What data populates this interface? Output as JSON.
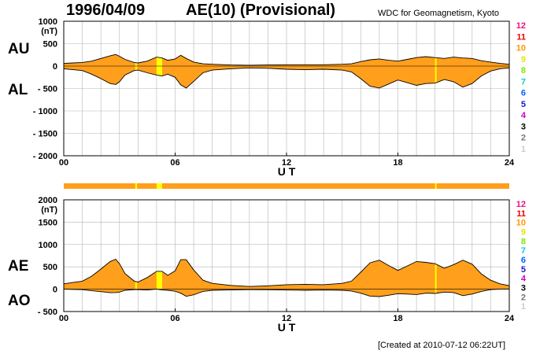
{
  "header": {
    "date": "1996/04/09",
    "title": "AE(10) (Provisional)",
    "source": "WDC for Geomagnetism, Kyoto"
  },
  "footer": {
    "created": "[Created at 2010-07-12 06:22UT]"
  },
  "colors": {
    "fill": "#ff9f1c",
    "highlight": "#ffff00",
    "grid": "#b4b4b4",
    "station_counts": {
      "12": "#e8157f",
      "11": "#e60000",
      "10": "#ff9900",
      "9": "#e6e600",
      "8": "#7fe600",
      "7": "#00d0d0",
      "6": "#0066ff",
      "5": "#1a1acc",
      "4": "#cc00cc",
      "3": "#000000",
      "2": "#777777",
      "1": "#cccccc"
    }
  },
  "legend_counts": [
    "12",
    "11",
    "10",
    "9",
    "8",
    "7",
    "6",
    "5",
    "4",
    "3",
    "2",
    "1"
  ],
  "chart_data": [
    {
      "type": "area",
      "panel": "top",
      "series_labels": [
        "AU",
        "AL"
      ],
      "ylabel": "(nT)",
      "xlabel": "U T",
      "xlim": [
        0,
        24
      ],
      "ylim": [
        -2000,
        1000
      ],
      "y_ticks": [
        "1000",
        "500",
        "0",
        "- 500",
        "- 1000",
        "- 1500",
        "- 2000"
      ],
      "y_tick_values": [
        1000,
        500,
        0,
        -500,
        -1000,
        -1500,
        -2000
      ],
      "x_ticks": [
        "00",
        "06",
        "12",
        "18",
        "24"
      ],
      "x_tick_values": [
        0,
        6,
        12,
        18,
        24
      ],
      "series": [
        {
          "name": "AU",
          "x": [
            0,
            0.5,
            1,
            1.5,
            2,
            2.5,
            2.8,
            3,
            3.3,
            3.8,
            4,
            4.5,
            5,
            5.3,
            5.6,
            6,
            6.3,
            6.6,
            7,
            7.5,
            8,
            9,
            10,
            11,
            12,
            13,
            14,
            15,
            15.5,
            16,
            16.5,
            17,
            17.5,
            18,
            18.5,
            19,
            19.5,
            20,
            20.5,
            21,
            21.5,
            22,
            22.5,
            23,
            23.5,
            24
          ],
          "values": [
            60,
            70,
            80,
            110,
            170,
            230,
            260,
            220,
            150,
            80,
            70,
            110,
            200,
            180,
            130,
            160,
            240,
            170,
            90,
            50,
            40,
            25,
            20,
            25,
            30,
            30,
            30,
            40,
            50,
            100,
            140,
            160,
            130,
            110,
            150,
            190,
            210,
            190,
            170,
            200,
            180,
            170,
            120,
            90,
            60,
            40
          ]
        },
        {
          "name": "AL",
          "x": [
            0,
            0.5,
            1,
            1.5,
            2,
            2.5,
            2.8,
            3,
            3.3,
            3.8,
            4,
            4.5,
            5,
            5.3,
            5.6,
            6,
            6.3,
            6.6,
            7,
            7.5,
            8,
            9,
            10,
            11,
            12,
            13,
            14,
            15,
            15.5,
            16,
            16.5,
            17,
            17.5,
            18,
            18.5,
            19,
            19.5,
            20,
            20.5,
            21,
            21.5,
            22,
            22.5,
            23,
            23.5,
            24
          ],
          "values": [
            -60,
            -80,
            -100,
            -180,
            -280,
            -390,
            -410,
            -350,
            -200,
            -100,
            -90,
            -150,
            -200,
            -220,
            -180,
            -250,
            -420,
            -490,
            -340,
            -150,
            -90,
            -60,
            -40,
            -50,
            -70,
            -80,
            -70,
            -90,
            -130,
            -280,
            -450,
            -490,
            -400,
            -310,
            -370,
            -430,
            -390,
            -380,
            -300,
            -350,
            -470,
            -390,
            -220,
            -110,
            -60,
            -40
          ]
        }
      ]
    },
    {
      "type": "area",
      "panel": "bottom",
      "series_labels": [
        "AE",
        "AO"
      ],
      "ylabel": "(nT)",
      "xlabel": "U T",
      "xlim": [
        0,
        24
      ],
      "ylim": [
        -500,
        2000
      ],
      "y_ticks": [
        "2000",
        "1500",
        "1000",
        "500",
        "0",
        "- 500"
      ],
      "y_tick_values": [
        2000,
        1500,
        1000,
        500,
        0,
        -500
      ],
      "x_ticks": [
        "00",
        "06",
        "12",
        "18",
        "24"
      ],
      "x_tick_values": [
        0,
        6,
        12,
        18,
        24
      ],
      "series": [
        {
          "name": "AE",
          "x": [
            0,
            0.5,
            1,
            1.5,
            2,
            2.5,
            2.8,
            3,
            3.3,
            3.8,
            4,
            4.5,
            5,
            5.3,
            5.6,
            6,
            6.3,
            6.6,
            7,
            7.5,
            8,
            9,
            10,
            11,
            12,
            13,
            14,
            15,
            15.5,
            16,
            16.5,
            17,
            17.5,
            18,
            18.5,
            19,
            19.5,
            20,
            20.5,
            21,
            21.5,
            22,
            22.5,
            23,
            23.5,
            24
          ],
          "values": [
            120,
            150,
            180,
            290,
            450,
            620,
            670,
            570,
            350,
            180,
            160,
            260,
            400,
            400,
            310,
            410,
            660,
            660,
            430,
            200,
            130,
            85,
            60,
            75,
            100,
            110,
            100,
            130,
            180,
            380,
            590,
            650,
            530,
            420,
            520,
            620,
            600,
            570,
            470,
            550,
            650,
            560,
            340,
            200,
            120,
            80
          ]
        },
        {
          "name": "AO",
          "x": [
            0,
            0.5,
            1,
            1.5,
            2,
            2.5,
            2.8,
            3,
            3.3,
            3.8,
            4,
            4.5,
            5,
            5.3,
            5.6,
            6,
            6.3,
            6.6,
            7,
            7.5,
            8,
            9,
            10,
            11,
            12,
            13,
            14,
            15,
            15.5,
            16,
            16.5,
            17,
            17.5,
            18,
            18.5,
            19,
            19.5,
            20,
            20.5,
            21,
            21.5,
            22,
            22.5,
            23,
            23.5,
            24
          ],
          "values": [
            0,
            -5,
            -10,
            -35,
            -55,
            -80,
            -75,
            -65,
            -25,
            -10,
            -10,
            -20,
            0,
            -20,
            -25,
            -45,
            -90,
            -160,
            -125,
            -50,
            -25,
            -18,
            -10,
            -12,
            -20,
            -25,
            -20,
            -25,
            -40,
            -90,
            -155,
            -165,
            -135,
            -100,
            -110,
            -120,
            -90,
            -95,
            -65,
            -75,
            -145,
            -110,
            -50,
            -10,
            0,
            0
          ]
        }
      ]
    }
  ]
}
